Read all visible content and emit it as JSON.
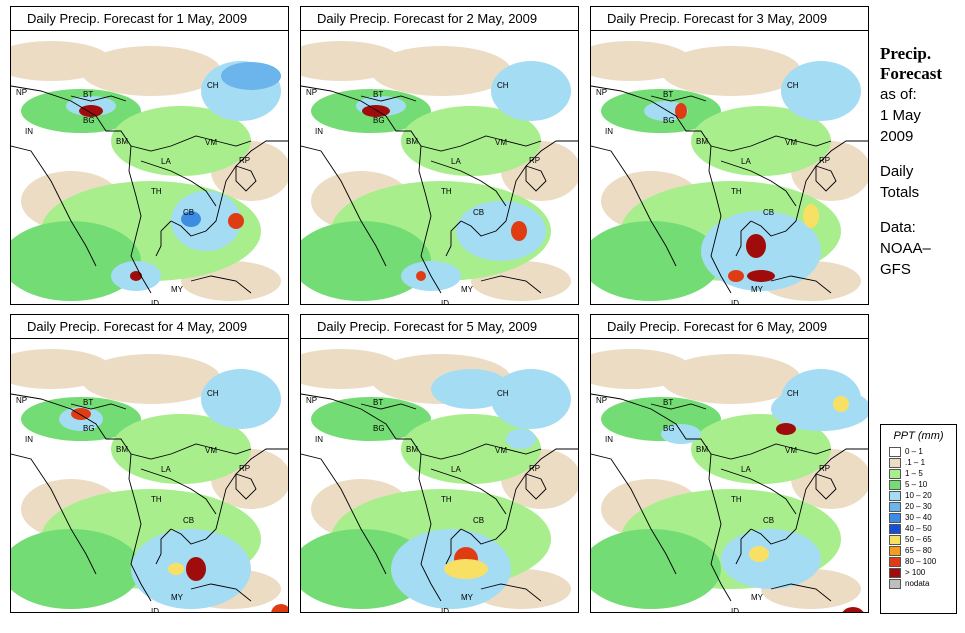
{
  "panels": [
    {
      "title": "Daily Precip. Forecast for  1 May, 2009"
    },
    {
      "title": "Daily Precip. Forecast for  2 May, 2009"
    },
    {
      "title": "Daily Precip. Forecast for  3 May, 2009"
    },
    {
      "title": "Daily Precip. Forecast for  4 May, 2009"
    },
    {
      "title": "Daily Precip. Forecast for  5 May, 2009"
    },
    {
      "title": "Daily Precip. Forecast for  6 May, 2009"
    }
  ],
  "country_labels": {
    "np": "NP",
    "bt": "BT",
    "in": "IN",
    "bg": "BG",
    "bm": "BM",
    "ch": "CH",
    "vm": "VM",
    "la": "LA",
    "th": "TH",
    "cb": "CB",
    "my": "MY",
    "id": "ID",
    "rp": "RP"
  },
  "sidebar": {
    "title_line1": "Precip.",
    "title_line2": "Forecast",
    "asof_line1": "as of:",
    "asof_line2": "1 May",
    "asof_line3": "2009",
    "daily_line1": "Daily",
    "daily_line2": "Totals",
    "data_line1": "Data:",
    "data_line2": "NOAA–",
    "data_line3": "GFS"
  },
  "legend": {
    "title": "PPT (mm)",
    "items": [
      {
        "label": "0 – 1",
        "color": "#ffffff"
      },
      {
        "label": ".1 – 1",
        "color": "#ecdcc4"
      },
      {
        "label": "1 – 5",
        "color": "#a8ee8c"
      },
      {
        "label": "5 – 10",
        "color": "#74dc74"
      },
      {
        "label": "10 – 20",
        "color": "#a4dcf4"
      },
      {
        "label": "20 – 30",
        "color": "#6cb4ec"
      },
      {
        "label": "30 – 40",
        "color": "#3c8ce4"
      },
      {
        "label": "40 – 50",
        "color": "#1450d4"
      },
      {
        "label": "50 – 65",
        "color": "#f8e064"
      },
      {
        "label": "65 – 80",
        "color": "#f89c1c"
      },
      {
        "label": "80 – 100",
        "color": "#e03c14"
      },
      {
        "label": "> 100",
        "color": "#a00c0c"
      },
      {
        "label": "nodata",
        "color": "#bebebe"
      }
    ]
  }
}
